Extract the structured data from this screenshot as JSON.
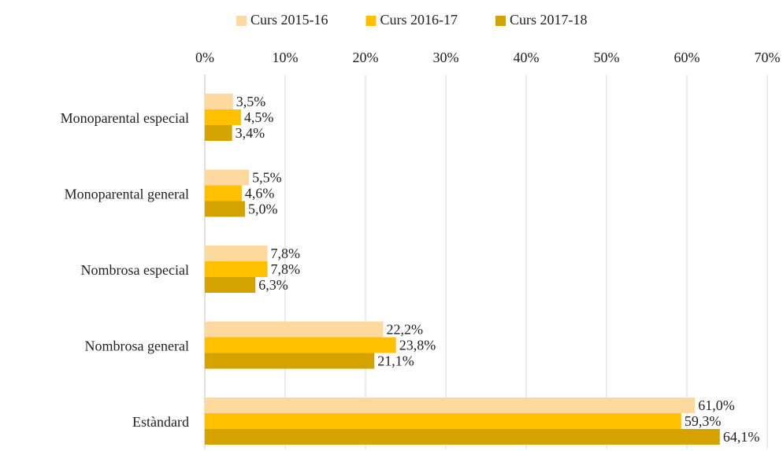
{
  "chart_data": {
    "type": "hbar",
    "categories": [
      "Monoparental especial",
      "Monoparental general",
      "Nombrosa especial",
      "Nombrosa general",
      "Estàndard"
    ],
    "series": [
      {
        "name": "Curs 2015-16",
        "color": "#fdd9a0",
        "values": [
          3.5,
          5.5,
          7.8,
          22.2,
          61.0
        ],
        "value_labels": [
          "3,5%",
          "5,5%",
          "7,8%",
          "22,2%",
          "61,0%"
        ]
      },
      {
        "name": "Curs 2016-17",
        "color": "#ffc000",
        "values": [
          4.5,
          4.6,
          7.8,
          23.8,
          59.3
        ],
        "value_labels": [
          "4,5%",
          "4,6%",
          "7,8%",
          "23,8%",
          "59,3%"
        ]
      },
      {
        "name": "Curs 2017-18",
        "color": "#d4a300",
        "values": [
          3.4,
          5.0,
          6.3,
          21.1,
          64.1
        ],
        "value_labels": [
          "3,4%",
          "5,0%",
          "6,3%",
          "21,1%",
          "64,1%"
        ]
      }
    ],
    "xlim": [
      0,
      70
    ],
    "xticks": [
      {
        "value": 0,
        "label": "0%"
      },
      {
        "value": 10,
        "label": "10%"
      },
      {
        "value": 20,
        "label": "20%"
      },
      {
        "value": 30,
        "label": "30%"
      },
      {
        "value": 40,
        "label": "40%"
      },
      {
        "value": 50,
        "label": "50%"
      },
      {
        "value": 60,
        "label": "60%"
      },
      {
        "value": 70,
        "label": "70%"
      }
    ],
    "grid": true,
    "legend": "top"
  }
}
